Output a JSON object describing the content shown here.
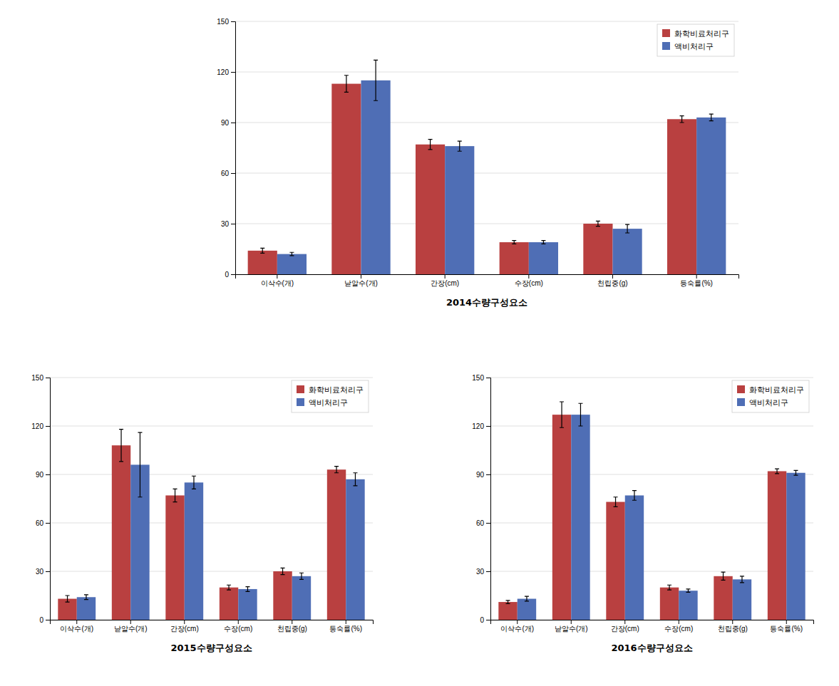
{
  "chart_data": [
    {
      "type": "bar",
      "xlabel": "2014수량구성요소",
      "categories": [
        "이삭수(개)",
        "낟알수(개)",
        "간장(cm)",
        "수장(cm)",
        "천립중(g)",
        "등숙률(%)"
      ],
      "series": [
        {
          "name": "화학비료처리구",
          "color": "#b94040",
          "values": [
            14,
            113,
            77,
            19,
            30,
            92
          ],
          "errors": [
            1.5,
            5,
            3,
            1,
            1.5,
            2
          ]
        },
        {
          "name": "액비처리구",
          "color": "#4f6eb5",
          "values": [
            12,
            115,
            76,
            19,
            27,
            93
          ],
          "errors": [
            1.0,
            12,
            3,
            1,
            2.5,
            2
          ]
        }
      ],
      "ylim": [
        0,
        150
      ],
      "yticks": [
        0,
        30,
        60,
        90,
        120,
        150
      ],
      "grid": true,
      "legend": "upper right"
    },
    {
      "type": "bar",
      "xlabel": "2015수량구성요소",
      "categories": [
        "이삭수(개)",
        "낟알수(개)",
        "간장(cm)",
        "수장(cm)",
        "천립중(g)",
        "등숙률(%)"
      ],
      "series": [
        {
          "name": "화학비료처리구",
          "color": "#b94040",
          "values": [
            13,
            108,
            77,
            20,
            30,
            93
          ],
          "errors": [
            2.0,
            10,
            4,
            1.5,
            2,
            2
          ]
        },
        {
          "name": "액비처리구",
          "color": "#4f6eb5",
          "values": [
            14,
            96,
            85,
            19,
            27,
            87
          ],
          "errors": [
            1.5,
            20,
            4,
            1.5,
            2,
            4
          ]
        }
      ],
      "ylim": [
        0,
        150
      ],
      "yticks": [
        0,
        30,
        60,
        90,
        120,
        150
      ],
      "grid": true,
      "legend": "upper right"
    },
    {
      "type": "bar",
      "xlabel": "2016수량구성요소",
      "categories": [
        "이삭수(개)",
        "낟알수(개)",
        "간장(cm)",
        "수장(cm)",
        "천립중(g)",
        "등숙률(%)"
      ],
      "series": [
        {
          "name": "화학비료처리구",
          "color": "#b94040",
          "values": [
            11,
            127,
            73,
            20,
            27,
            92
          ],
          "errors": [
            1.0,
            8,
            3,
            1.5,
            2.5,
            1.5
          ]
        },
        {
          "name": "액비처리구",
          "color": "#4f6eb5",
          "values": [
            13,
            127,
            77,
            18,
            25,
            91
          ],
          "errors": [
            1.5,
            7,
            3,
            1.0,
            2.0,
            1.5
          ]
        }
      ],
      "ylim": [
        0,
        150
      ],
      "yticks": [
        0,
        30,
        60,
        90,
        120,
        150
      ],
      "grid": true,
      "legend": "upper right"
    }
  ]
}
